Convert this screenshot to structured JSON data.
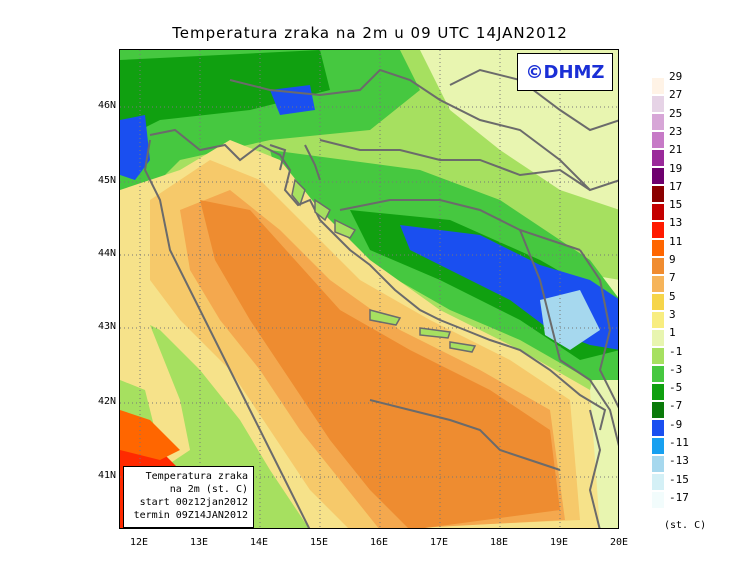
{
  "title": "Temperatura zraka na 2m u 09 UTC 14JAN2012",
  "logo": "©DHMZ",
  "info_box": {
    "line1": "Temperatura zraka",
    "line2": "na 2m (st. C)",
    "line3": "start 00z12jan2012",
    "line4": "termin 09Z14JAN2012"
  },
  "lat_labels": [
    "46N",
    "45N",
    "44N",
    "43N",
    "42N",
    "41N"
  ],
  "lon_labels": [
    "12E",
    "13E",
    "14E",
    "15E",
    "16E",
    "17E",
    "18E",
    "19E",
    "20E"
  ],
  "colorbar": {
    "unit": "(st. C)",
    "labels": [
      "29",
      "27",
      "25",
      "23",
      "21",
      "19",
      "17",
      "15",
      "13",
      "11",
      "9",
      "7",
      "5",
      "3",
      "1",
      "-1",
      "-3",
      "-5",
      "-7",
      "-9",
      "-11",
      "-13",
      "-15",
      "-17"
    ],
    "colors": [
      "#fff3e6",
      "#e6d3e6",
      "#d7a6d7",
      "#c77ac7",
      "#9a2a9a",
      "#6e006e",
      "#8a0000",
      "#c40000",
      "#ff1a00",
      "#ff6600",
      "#f08c30",
      "#f6b45a",
      "#f6d54a",
      "#f8ed80",
      "#e8f5b0",
      "#a6e060",
      "#46c840",
      "#10a010",
      "#0a7a0a",
      "#1a4ff0",
      "#18a0f0",
      "#a6d8ee",
      "#d4f0f6",
      "#f2fcfc"
    ]
  },
  "map": {
    "sea_colors": {
      "deep": "#ee8c30",
      "mid": "#f4a84e",
      "shelf": "#f6c96a",
      "coast": "#f6e28a"
    },
    "land_colors": {
      "cold": "#46c840",
      "colder": "#10a010",
      "coldest": "#1a4ff0",
      "mild": "#a6e060",
      "warm": "#e8f5b0",
      "hot": "#ff2a00"
    }
  }
}
